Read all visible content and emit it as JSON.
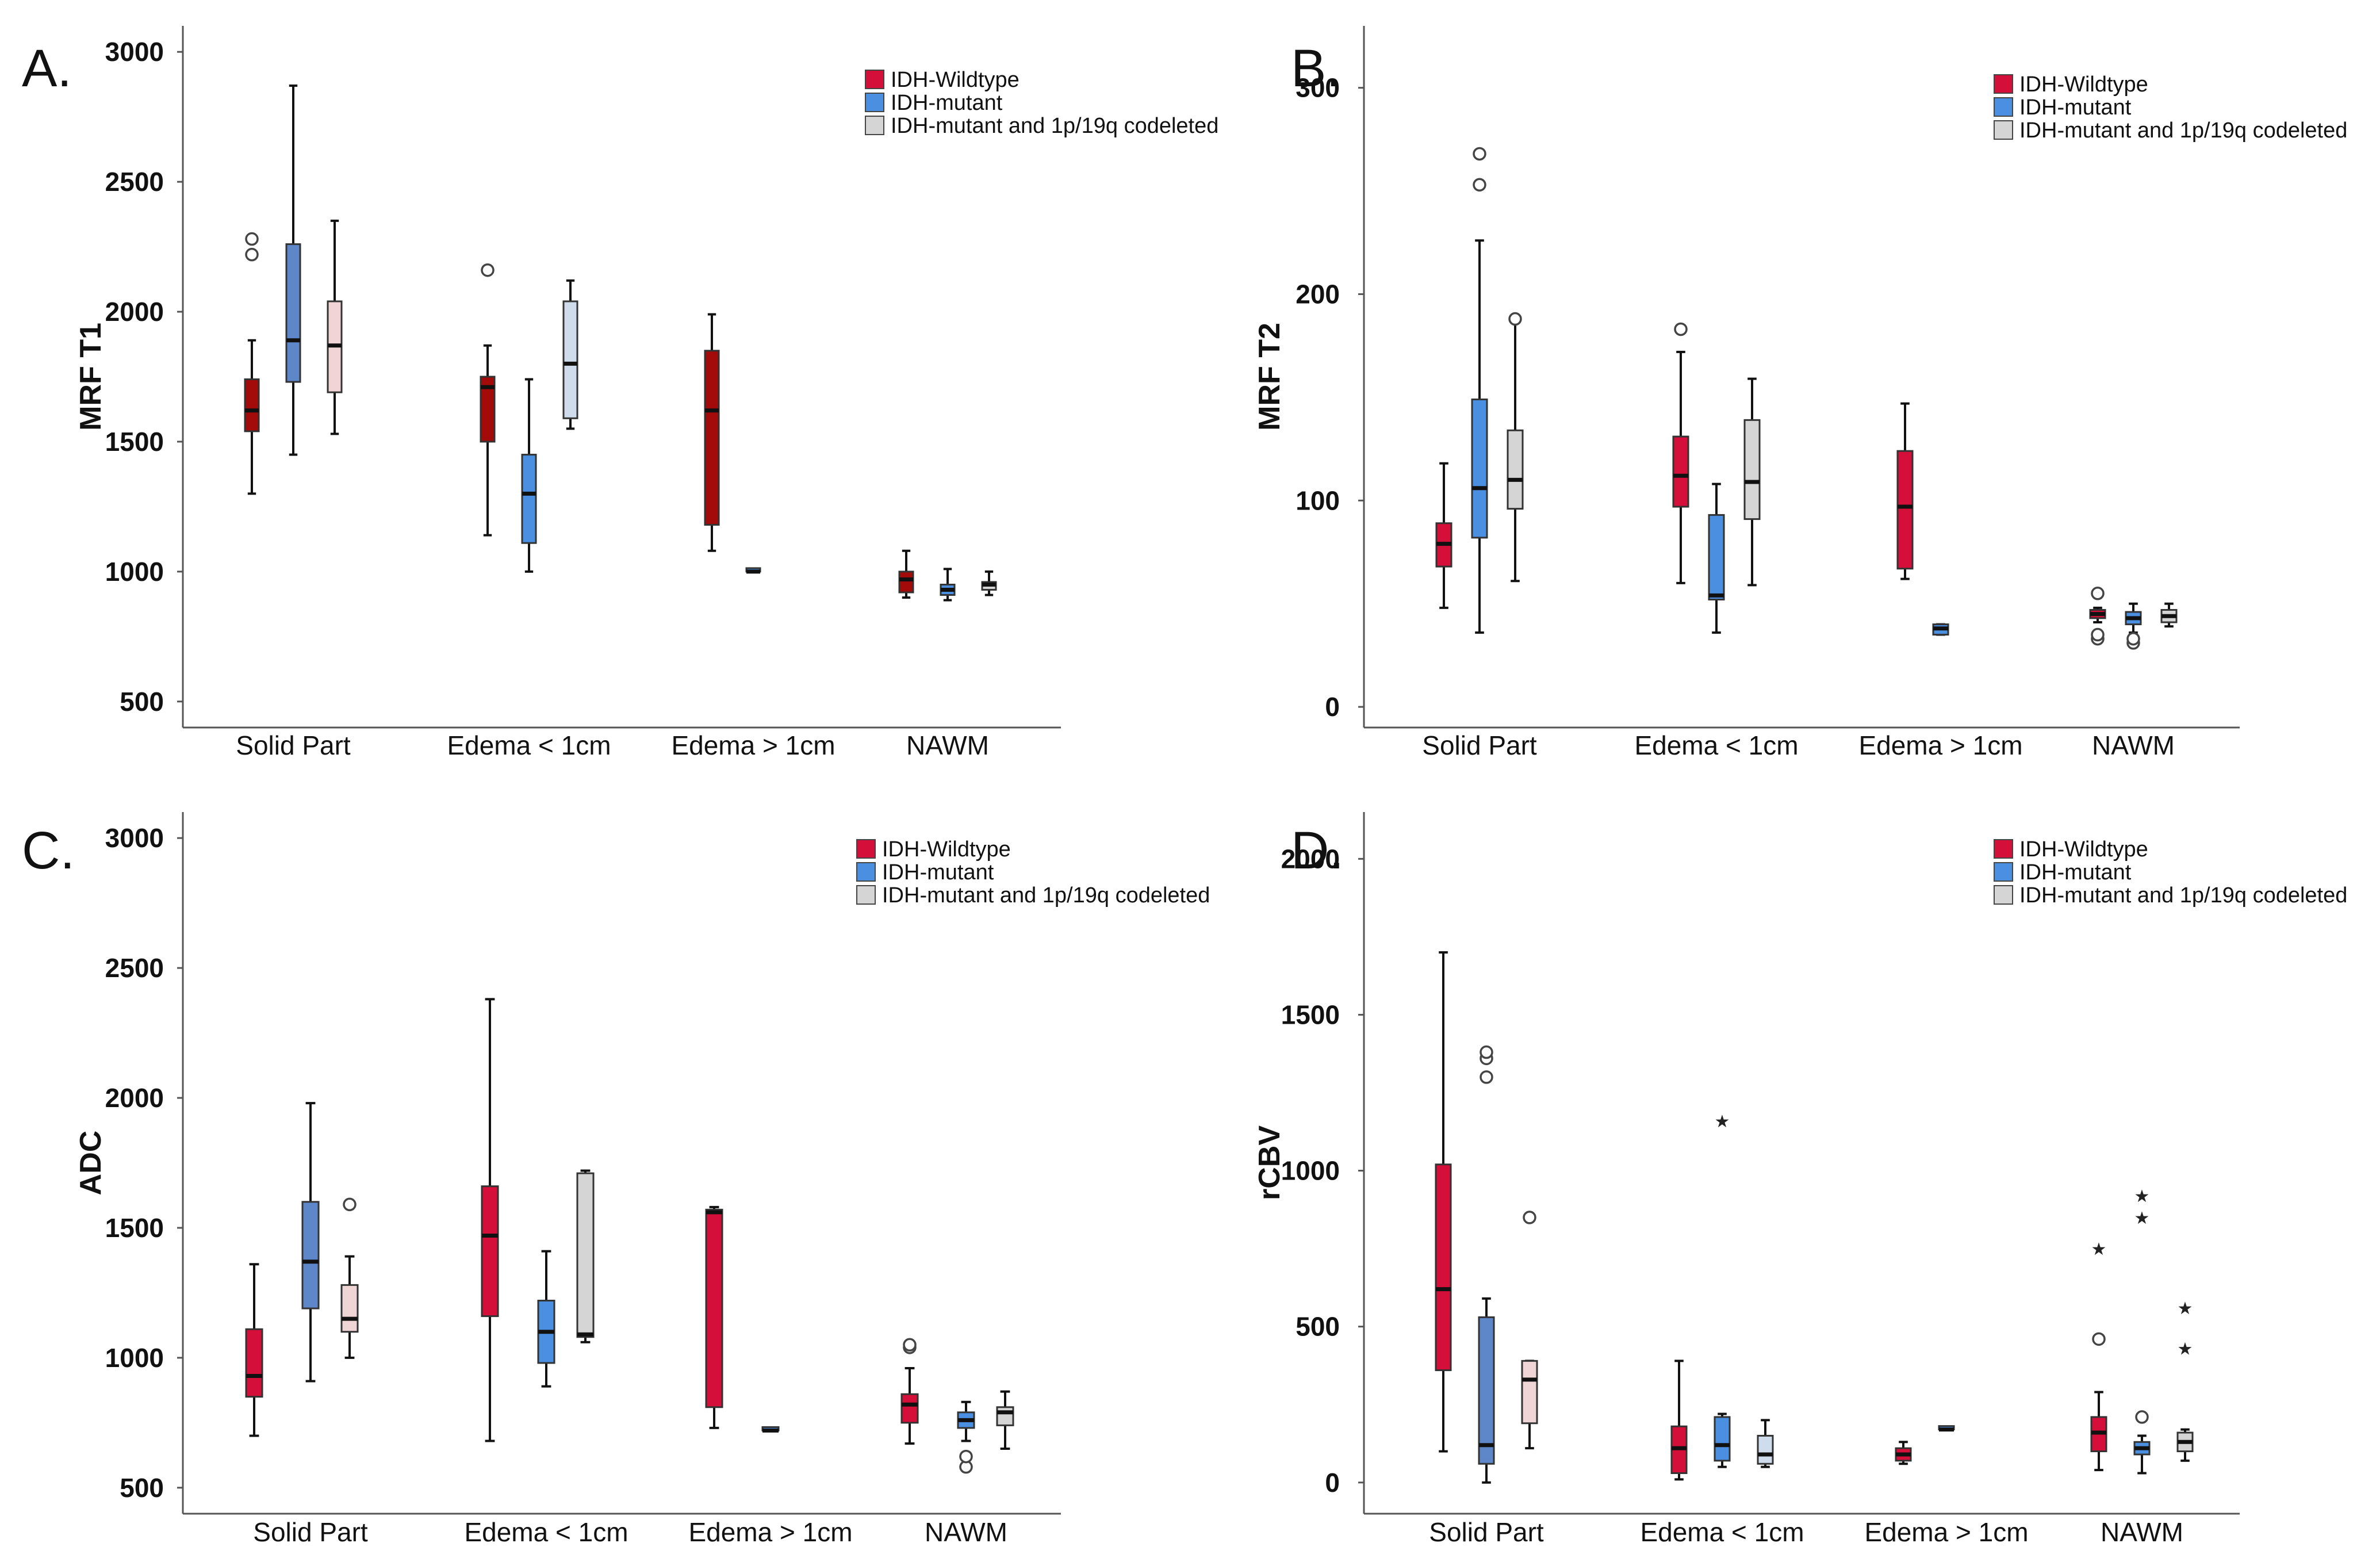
{
  "figure": {
    "colors": {
      "idh_wildtype": "#d40f3a",
      "idh_wildtype_dark": "#a30b0b",
      "idh_mutant": "#4a8fe0",
      "idh_mutant_dark": "#5d87c9",
      "codeleted": "#d5d5d5",
      "codeleted_pink": "#efd5d6",
      "codeleted_blue": "#cfdceb"
    }
  },
  "chart_data": [
    {
      "type": "box",
      "panel": "A.",
      "ylabel": "MRF T1",
      "ylim": [
        400,
        3100
      ],
      "yticks": [
        500,
        1000,
        1500,
        2000,
        2500,
        3000
      ],
      "categories": [
        "Solid Part",
        "Edema < 1cm",
        "Edema > 1cm",
        "NAWM"
      ],
      "legend": [
        "IDH-Wildtype",
        "IDH-mutant",
        "IDH-mutant and 1p/19q codeleted"
      ],
      "legend_position": "top-right",
      "boxes": [
        {
          "category": 0,
          "series": 0,
          "fill": "idh_wildtype_dark",
          "whisker_low": 1300,
          "q1": 1540,
          "median": 1620,
          "q3": 1740,
          "whisker_high": 1890,
          "outliers": [
            2220,
            2280
          ],
          "extremes": []
        },
        {
          "category": 0,
          "series": 1,
          "fill": "idh_mutant_dark",
          "whisker_low": 1450,
          "q1": 1730,
          "median": 1890,
          "q3": 2260,
          "whisker_high": 2870,
          "outliers": [],
          "extremes": []
        },
        {
          "category": 0,
          "series": 2,
          "fill": "codeleted_pink",
          "whisker_low": 1530,
          "q1": 1690,
          "median": 1870,
          "q3": 2040,
          "whisker_high": 2350,
          "outliers": [],
          "extremes": []
        },
        {
          "category": 1,
          "series": 0,
          "fill": "idh_wildtype_dark",
          "whisker_low": 1140,
          "q1": 1500,
          "median": 1710,
          "q3": 1750,
          "whisker_high": 1870,
          "outliers": [
            2160
          ],
          "extremes": []
        },
        {
          "category": 1,
          "series": 1,
          "fill": "idh_mutant",
          "whisker_low": 1000,
          "q1": 1110,
          "median": 1300,
          "q3": 1450,
          "whisker_high": 1740,
          "outliers": [],
          "extremes": []
        },
        {
          "category": 1,
          "series": 2,
          "fill": "codeleted_blue",
          "whisker_low": 1550,
          "q1": 1590,
          "median": 1800,
          "q3": 2040,
          "whisker_high": 2120,
          "outliers": [],
          "extremes": []
        },
        {
          "category": 2,
          "series": 0,
          "fill": "idh_wildtype_dark",
          "whisker_low": 1080,
          "q1": 1180,
          "median": 1620,
          "q3": 1850,
          "whisker_high": 1990,
          "outliers": [],
          "extremes": []
        },
        {
          "category": 2,
          "series": 1,
          "fill": "idh_mutant",
          "whisker_low": 1000,
          "q1": 1000,
          "median": 1000,
          "q3": 1000,
          "whisker_high": 1000,
          "outliers": [],
          "extremes": []
        },
        {
          "category": 3,
          "series": 0,
          "fill": "idh_wildtype_dark",
          "whisker_low": 900,
          "q1": 920,
          "median": 970,
          "q3": 1000,
          "whisker_high": 1080,
          "outliers": [],
          "extremes": []
        },
        {
          "category": 3,
          "series": 1,
          "fill": "idh_mutant",
          "whisker_low": 890,
          "q1": 910,
          "median": 930,
          "q3": 950,
          "whisker_high": 1010,
          "outliers": [],
          "extremes": []
        },
        {
          "category": 3,
          "series": 2,
          "fill": "codeleted",
          "whisker_low": 910,
          "q1": 930,
          "median": 950,
          "q3": 960,
          "whisker_high": 1000,
          "outliers": [],
          "extremes": []
        }
      ]
    },
    {
      "type": "box",
      "panel": "B.",
      "ylabel": "MRF T2",
      "ylim": [
        -10,
        330
      ],
      "yticks": [
        0,
        100,
        200,
        300
      ],
      "categories": [
        "Solid Part",
        "Edema < 1cm",
        "Edema > 1cm",
        "NAWM"
      ],
      "legend": [
        "IDH-Wildtype",
        "IDH-mutant",
        "IDH-mutant and 1p/19q codeleted"
      ],
      "legend_position": "top-right",
      "boxes": [
        {
          "category": 0,
          "series": 0,
          "fill": "idh_wildtype",
          "whisker_low": 48,
          "q1": 68,
          "median": 79,
          "q3": 89,
          "whisker_high": 118,
          "outliers": [],
          "extremes": []
        },
        {
          "category": 0,
          "series": 1,
          "fill": "idh_mutant",
          "whisker_low": 36,
          "q1": 82,
          "median": 106,
          "q3": 149,
          "whisker_high": 226,
          "outliers": [
            253,
            268
          ],
          "extremes": []
        },
        {
          "category": 0,
          "series": 2,
          "fill": "codeleted",
          "whisker_low": 61,
          "q1": 96,
          "median": 110,
          "q3": 134,
          "whisker_high": 188,
          "outliers": [
            188
          ],
          "extremes": []
        },
        {
          "category": 1,
          "series": 0,
          "fill": "idh_wildtype",
          "whisker_low": 60,
          "q1": 97,
          "median": 112,
          "q3": 131,
          "whisker_high": 172,
          "outliers": [
            183
          ],
          "extremes": []
        },
        {
          "category": 1,
          "series": 1,
          "fill": "idh_mutant",
          "whisker_low": 36,
          "q1": 52,
          "median": 54,
          "q3": 93,
          "whisker_high": 108,
          "outliers": [],
          "extremes": []
        },
        {
          "category": 1,
          "series": 2,
          "fill": "codeleted",
          "whisker_low": 59,
          "q1": 91,
          "median": 109,
          "q3": 139,
          "whisker_high": 159,
          "outliers": [],
          "extremes": []
        },
        {
          "category": 2,
          "series": 0,
          "fill": "idh_wildtype",
          "whisker_low": 62,
          "q1": 67,
          "median": 97,
          "q3": 124,
          "whisker_high": 147,
          "outliers": [],
          "extremes": []
        },
        {
          "category": 2,
          "series": 1,
          "fill": "idh_mutant",
          "whisker_low": 35,
          "q1": 35,
          "median": 38,
          "q3": 40,
          "whisker_high": 40,
          "outliers": [],
          "extremes": []
        },
        {
          "category": 3,
          "series": 0,
          "fill": "idh_wildtype",
          "whisker_low": 41,
          "q1": 43,
          "median": 45,
          "q3": 47,
          "whisker_high": 48,
          "outliers": [
            33,
            35,
            55
          ],
          "extremes": []
        },
        {
          "category": 3,
          "series": 1,
          "fill": "idh_mutant",
          "whisker_low": 36,
          "q1": 40,
          "median": 43,
          "q3": 46,
          "whisker_high": 50,
          "outliers": [
            31,
            33
          ],
          "extremes": []
        },
        {
          "category": 3,
          "series": 2,
          "fill": "codeleted",
          "whisker_low": 39,
          "q1": 41,
          "median": 44,
          "q3": 47,
          "whisker_high": 50,
          "outliers": [],
          "extremes": []
        }
      ]
    },
    {
      "type": "box",
      "panel": "C.",
      "ylabel": "ADC",
      "ylim": [
        400,
        3100
      ],
      "yticks": [
        500,
        1000,
        1500,
        2000,
        2500,
        3000
      ],
      "categories": [
        "Solid Part",
        "Edema < 1cm",
        "Edema > 1cm",
        "NAWM"
      ],
      "legend": [
        "IDH-Wildtype",
        "IDH-mutant",
        "IDH-mutant and 1p/19q codeleted"
      ],
      "legend_position": "top-right",
      "boxes": [
        {
          "category": 0,
          "series": 0,
          "fill": "idh_wildtype",
          "whisker_low": 700,
          "q1": 850,
          "median": 930,
          "q3": 1110,
          "whisker_high": 1360,
          "outliers": [],
          "extremes": []
        },
        {
          "category": 0,
          "series": 1,
          "fill": "idh_mutant_dark",
          "whisker_low": 910,
          "q1": 1190,
          "median": 1370,
          "q3": 1600,
          "whisker_high": 1980,
          "outliers": [],
          "extremes": []
        },
        {
          "category": 0,
          "series": 2,
          "fill": "codeleted_pink",
          "whisker_low": 1000,
          "q1": 1100,
          "median": 1150,
          "q3": 1280,
          "whisker_high": 1390,
          "outliers": [
            1590
          ],
          "extremes": []
        },
        {
          "category": 1,
          "series": 0,
          "fill": "idh_wildtype",
          "whisker_low": 680,
          "q1": 1160,
          "median": 1470,
          "q3": 1660,
          "whisker_high": 2380,
          "outliers": [],
          "extremes": []
        },
        {
          "category": 1,
          "series": 1,
          "fill": "idh_mutant",
          "whisker_low": 890,
          "q1": 980,
          "median": 1100,
          "q3": 1220,
          "whisker_high": 1410,
          "outliers": [],
          "extremes": []
        },
        {
          "category": 1,
          "series": 2,
          "fill": "codeleted",
          "whisker_low": 1060,
          "q1": 1080,
          "median": 1090,
          "q3": 1710,
          "whisker_high": 1720,
          "outliers": [],
          "extremes": []
        },
        {
          "category": 2,
          "series": 0,
          "fill": "idh_wildtype",
          "whisker_low": 730,
          "q1": 810,
          "median": 1560,
          "q3": 1570,
          "whisker_high": 1580,
          "outliers": [],
          "extremes": []
        },
        {
          "category": 2,
          "series": 1,
          "fill": "idh_mutant",
          "whisker_low": 720,
          "q1": 720,
          "median": 720,
          "q3": 720,
          "whisker_high": 720,
          "outliers": [],
          "extremes": []
        },
        {
          "category": 3,
          "series": 0,
          "fill": "idh_wildtype",
          "whisker_low": 670,
          "q1": 750,
          "median": 820,
          "q3": 860,
          "whisker_high": 960,
          "outliers": [
            1040,
            1050
          ],
          "extremes": []
        },
        {
          "category": 3,
          "series": 1,
          "fill": "idh_mutant",
          "whisker_low": 680,
          "q1": 730,
          "median": 760,
          "q3": 790,
          "whisker_high": 830,
          "outliers": [
            580,
            620
          ],
          "extremes": []
        },
        {
          "category": 3,
          "series": 2,
          "fill": "codeleted",
          "whisker_low": 650,
          "q1": 740,
          "median": 790,
          "q3": 810,
          "whisker_high": 870,
          "outliers": [],
          "extremes": []
        }
      ]
    },
    {
      "type": "box",
      "panel": "D.",
      "ylabel": "rCBV",
      "ylim": [
        -100,
        2150
      ],
      "yticks": [
        0,
        500,
        1000,
        1500,
        2000
      ],
      "categories": [
        "Solid Part",
        "Edema < 1cm",
        "Edema > 1cm",
        "NAWM"
      ],
      "legend": [
        "IDH-Wildtype",
        "IDH-mutant",
        "IDH-mutant and 1p/19q codeleted"
      ],
      "legend_position": "top-right",
      "boxes": [
        {
          "category": 0,
          "series": 0,
          "fill": "idh_wildtype",
          "whisker_low": 100,
          "q1": 360,
          "median": 620,
          "q3": 1020,
          "whisker_high": 1700,
          "outliers": [],
          "extremes": []
        },
        {
          "category": 0,
          "series": 1,
          "fill": "idh_mutant_dark",
          "whisker_low": 0,
          "q1": 60,
          "median": 120,
          "q3": 530,
          "whisker_high": 590,
          "outliers": [
            1300,
            1360,
            1380
          ],
          "extremes": []
        },
        {
          "category": 0,
          "series": 2,
          "fill": "codeleted_pink",
          "whisker_low": 110,
          "q1": 190,
          "median": 330,
          "q3": 390,
          "whisker_high": 390,
          "outliers": [
            850
          ],
          "extremes": []
        },
        {
          "category": 1,
          "series": 0,
          "fill": "idh_wildtype",
          "whisker_low": 10,
          "q1": 30,
          "median": 110,
          "q3": 180,
          "whisker_high": 390,
          "outliers": [],
          "extremes": []
        },
        {
          "category": 1,
          "series": 1,
          "fill": "idh_mutant",
          "whisker_low": 50,
          "q1": 70,
          "median": 120,
          "q3": 210,
          "whisker_high": 220,
          "outliers": [],
          "extremes": [
            1160
          ]
        },
        {
          "category": 1,
          "series": 2,
          "fill": "codeleted_blue",
          "whisker_low": 50,
          "q1": 60,
          "median": 90,
          "q3": 150,
          "whisker_high": 200,
          "outliers": [],
          "extremes": []
        },
        {
          "category": 2,
          "series": 0,
          "fill": "idh_wildtype",
          "whisker_low": 60,
          "q1": 70,
          "median": 90,
          "q3": 110,
          "whisker_high": 130,
          "outliers": [],
          "extremes": []
        },
        {
          "category": 2,
          "series": 1,
          "fill": "idh_mutant",
          "whisker_low": 170,
          "q1": 170,
          "median": 170,
          "q3": 170,
          "whisker_high": 170,
          "outliers": [],
          "extremes": []
        },
        {
          "category": 3,
          "series": 0,
          "fill": "idh_wildtype",
          "whisker_low": 40,
          "q1": 100,
          "median": 160,
          "q3": 210,
          "whisker_high": 290,
          "outliers": [
            460
          ],
          "extremes": [
            750
          ]
        },
        {
          "category": 3,
          "series": 1,
          "fill": "idh_mutant",
          "whisker_low": 30,
          "q1": 90,
          "median": 110,
          "q3": 130,
          "whisker_high": 150,
          "outliers": [
            210
          ],
          "extremes": [
            850,
            920
          ]
        },
        {
          "category": 3,
          "series": 2,
          "fill": "codeleted",
          "whisker_low": 70,
          "q1": 100,
          "median": 130,
          "q3": 160,
          "whisker_high": 170,
          "outliers": [],
          "extremes": [
            430,
            560
          ]
        }
      ]
    }
  ]
}
